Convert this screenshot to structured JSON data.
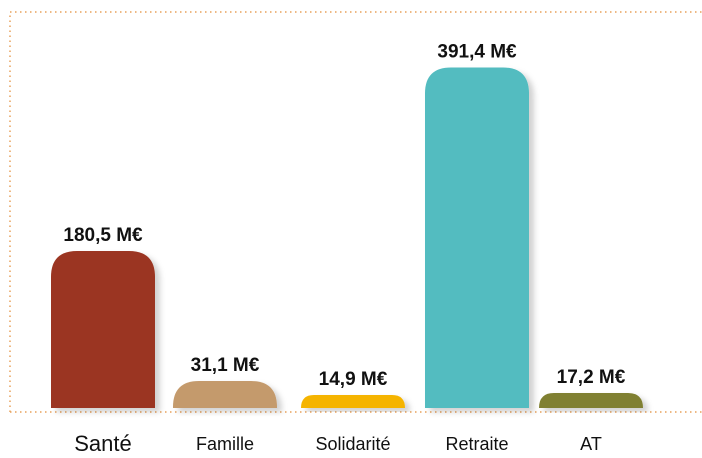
{
  "chart_data": {
    "type": "bar",
    "categories": [
      "Santé",
      "Famille",
      "Solidarité",
      "Retraite",
      "AT"
    ],
    "values": [
      180.5,
      31.1,
      14.9,
      391.4,
      17.2
    ],
    "value_labels": [
      "180,5 M€",
      "31,1 M€",
      "14,9 M€",
      "391,4 M€",
      "17,2 M€"
    ],
    "colors": [
      "#9b3620",
      "#c49a6c",
      "#f5b400",
      "#52bcc0",
      "#808030"
    ]
  }
}
